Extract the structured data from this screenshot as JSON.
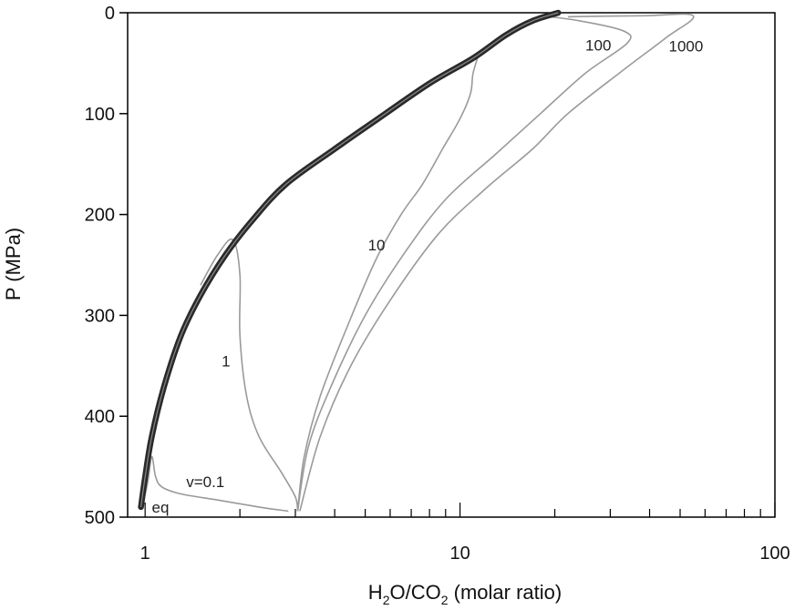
{
  "chart_data": {
    "type": "line",
    "xlabel": {
      "main": "H",
      "sub1": "2",
      "mid": "O/CO",
      "sub2": "2",
      "tail": " (molar ratio)"
    },
    "ylabel": "P (MPa)",
    "x_scale": "log",
    "xlim": [
      0.88,
      100
    ],
    "ylim": [
      0,
      500
    ],
    "y_inverted": true,
    "x_ticks": [
      1,
      10,
      100
    ],
    "x_tick_labels": [
      "1",
      "10",
      "100"
    ],
    "y_ticks": [
      0,
      100,
      200,
      300,
      400,
      500
    ],
    "y_tick_labels": [
      "0",
      "100",
      "200",
      "300",
      "400",
      "500"
    ],
    "grid": false,
    "legend": "none",
    "colors": {
      "curve": "#9a9a9a",
      "equilibrium": "#2a2a2a",
      "axis": "#000000"
    },
    "series": [
      {
        "name": "eq",
        "label": "eq",
        "label_at": [
          1.05,
          490
        ],
        "style": "thick",
        "points": [
          [
            0.97,
            490
          ],
          [
            1.0,
            460
          ],
          [
            1.05,
            420
          ],
          [
            1.15,
            370
          ],
          [
            1.3,
            320
          ],
          [
            1.5,
            280
          ],
          [
            1.8,
            240
          ],
          [
            2.2,
            205
          ],
          [
            2.8,
            170
          ],
          [
            4.0,
            135
          ],
          [
            5.5,
            105
          ],
          [
            8.0,
            70
          ],
          [
            11.0,
            45
          ],
          [
            14.0,
            22
          ],
          [
            17.0,
            8
          ],
          [
            20.5,
            0
          ]
        ]
      },
      {
        "name": "v=0.1",
        "label": "v=0.1",
        "label_at": [
          1.35,
          465
        ],
        "style": "thin",
        "points": [
          [
            0.98,
            490
          ],
          [
            1.02,
            465
          ],
          [
            1.05,
            440
          ],
          [
            1.08,
            460
          ],
          [
            1.13,
            470
          ],
          [
            1.3,
            477
          ],
          [
            1.7,
            483
          ],
          [
            2.3,
            490
          ],
          [
            2.85,
            494
          ]
        ]
      },
      {
        "name": "1",
        "label": "1",
        "label_at": [
          1.75,
          345
        ],
        "style": "thin",
        "points": [
          [
            1.5,
            270
          ],
          [
            1.7,
            240
          ],
          [
            1.9,
            225
          ],
          [
            2.0,
            260
          ],
          [
            2.0,
            320
          ],
          [
            2.1,
            380
          ],
          [
            2.3,
            420
          ],
          [
            2.7,
            455
          ],
          [
            3.0,
            480
          ],
          [
            3.05,
            494
          ]
        ]
      },
      {
        "name": "10",
        "label": "10",
        "label_at": [
          5.1,
          230
        ],
        "style": "thin",
        "points": [
          [
            3.05,
            494
          ],
          [
            3.2,
            440
          ],
          [
            3.6,
            380
          ],
          [
            4.4,
            310
          ],
          [
            5.4,
            245
          ],
          [
            6.5,
            200
          ],
          [
            7.6,
            170
          ],
          [
            8.8,
            135
          ],
          [
            10.0,
            105
          ],
          [
            10.8,
            80
          ],
          [
            11.0,
            60
          ],
          [
            11.5,
            40
          ]
        ]
      },
      {
        "name": "100",
        "label": "100",
        "label_at": [
          25.0,
          32
        ],
        "style": "thin",
        "points": [
          [
            3.05,
            494
          ],
          [
            3.3,
            430
          ],
          [
            3.9,
            370
          ],
          [
            5.0,
            300
          ],
          [
            6.6,
            240
          ],
          [
            9.0,
            185
          ],
          [
            13.0,
            140
          ],
          [
            18.0,
            100
          ],
          [
            25.0,
            60
          ],
          [
            34.0,
            30
          ],
          [
            33.0,
            18
          ],
          [
            24.0,
            8
          ],
          [
            18.0,
            3
          ]
        ]
      },
      {
        "name": "1000",
        "label": "1000",
        "label_at": [
          46.0,
          33
        ],
        "style": "thin",
        "points": [
          [
            3.1,
            494
          ],
          [
            3.6,
            420
          ],
          [
            4.5,
            350
          ],
          [
            6.0,
            285
          ],
          [
            8.5,
            220
          ],
          [
            12.0,
            175
          ],
          [
            17.0,
            135
          ],
          [
            22.0,
            100
          ],
          [
            32.0,
            60
          ],
          [
            45.0,
            25
          ],
          [
            55.0,
            3
          ],
          [
            38.0,
            3
          ],
          [
            22.0,
            4
          ]
        ]
      }
    ]
  }
}
